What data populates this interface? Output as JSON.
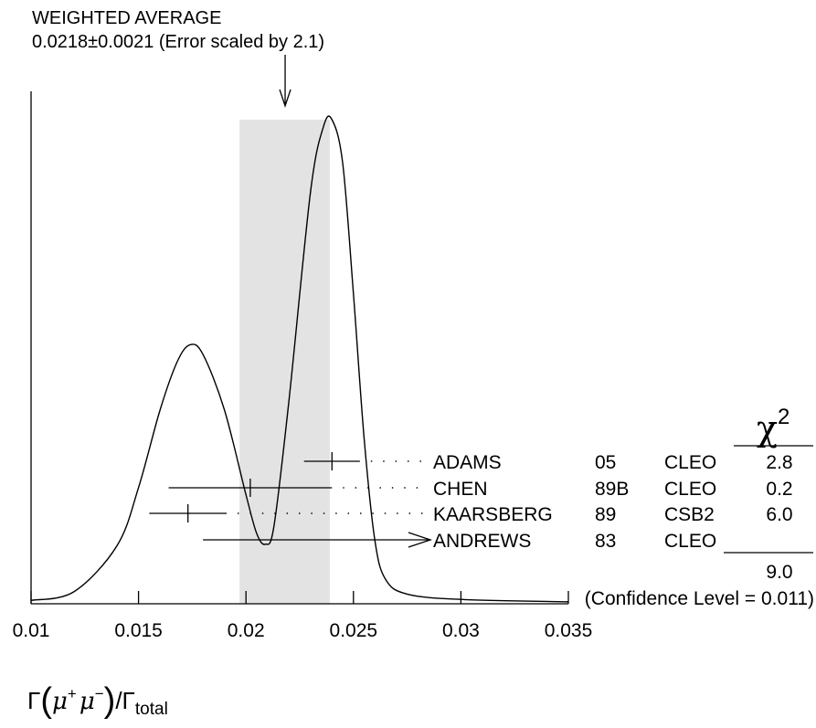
{
  "chart_data": {
    "type": "ideogram",
    "title_lines": [
      "WEIGHTED AVERAGE",
      "0.0218±0.0021 (Error scaled by 2.1)"
    ],
    "weighted_average": {
      "value": 0.0218,
      "error": 0.0021,
      "scale_factor": 2.1
    },
    "x_axis": {
      "label": "Γ(μ⁺μ⁻)/Γtotal",
      "label_parts": {
        "gamma": "Γ",
        "mu_plus_base": "μ",
        "mu_plus_sup": "+",
        "mu_minus_base": "μ",
        "mu_minus_sup": "−",
        "denominator": "/Γ",
        "denominator_sub": "total"
      },
      "range": [
        0.01,
        0.035
      ],
      "ticks": [
        0.01,
        0.015,
        0.02,
        0.025,
        0.03,
        0.035
      ],
      "tick_labels": [
        "0.01",
        "0.015",
        "0.02",
        "0.025",
        "0.03",
        "0.035"
      ]
    },
    "chi2_header": {
      "symbol": "χ",
      "power": "2"
    },
    "measurements": [
      {
        "name": "ADAMS",
        "year": "05",
        "experiment": "CLEO",
        "value": 0.024,
        "low": 0.0227,
        "high": 0.0253,
        "chi2": "2.8",
        "upper_limit": false
      },
      {
        "name": "CHEN",
        "year": "89B",
        "experiment": "CLEO",
        "value": 0.0202,
        "low": 0.0164,
        "high": 0.024,
        "chi2": "0.2",
        "upper_limit": false
      },
      {
        "name": "KAARSBERG",
        "year": "89",
        "experiment": "CSB2",
        "value": 0.0173,
        "low": 0.0155,
        "high": 0.0191,
        "chi2": "6.0",
        "upper_limit": false
      },
      {
        "name": "ANDREWS",
        "year": "83",
        "experiment": "CLEO",
        "value": 0.018,
        "upper_limit": true,
        "chi2": ""
      }
    ],
    "chi2_total": "9.0",
    "confidence_level_text": "(Confidence Level = 0.011)",
    "ideogram_curve": [
      [
        0.01,
        0.007
      ],
      [
        0.012,
        0.025
      ],
      [
        0.014,
        0.12
      ],
      [
        0.015,
        0.24
      ],
      [
        0.016,
        0.4
      ],
      [
        0.0168,
        0.5
      ],
      [
        0.0174,
        0.535
      ],
      [
        0.018,
        0.515
      ],
      [
        0.019,
        0.4
      ],
      [
        0.02,
        0.225
      ],
      [
        0.0205,
        0.145
      ],
      [
        0.0209,
        0.123
      ],
      [
        0.0213,
        0.16
      ],
      [
        0.022,
        0.42
      ],
      [
        0.023,
        0.85
      ],
      [
        0.0236,
        0.985
      ],
      [
        0.024,
        1.0
      ],
      [
        0.0245,
        0.91
      ],
      [
        0.025,
        0.64
      ],
      [
        0.0255,
        0.34
      ],
      [
        0.026,
        0.13
      ],
      [
        0.0265,
        0.05
      ],
      [
        0.0275,
        0.02
      ],
      [
        0.03,
        0.009
      ],
      [
        0.035,
        0.004
      ]
    ],
    "colors": {
      "band": "#e3e3e3",
      "ink": "#000000"
    }
  }
}
